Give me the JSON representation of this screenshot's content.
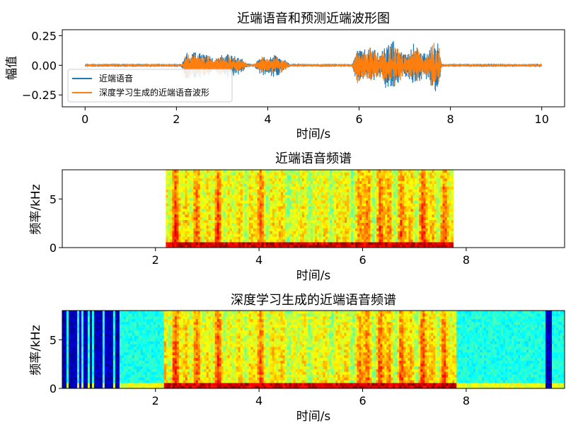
{
  "colors": {
    "series_near_end": "#1f77b4",
    "series_generated": "#ff7f0e",
    "spectrogram_colormap": "jet"
  },
  "chart_data": [
    {
      "id": "waveform",
      "type": "line",
      "title": "近端语音和预测近端波形图",
      "xlabel": "时间/s",
      "ylabel": "幅值",
      "xlim": [
        -0.5,
        10.5
      ],
      "ylim": [
        -0.35,
        0.3
      ],
      "xticks": [
        0,
        2,
        4,
        6,
        8,
        10
      ],
      "xtick_labels": [
        "0",
        "2",
        "4",
        "6",
        "8",
        "10"
      ],
      "yticks": [
        0.25,
        0.0,
        -0.25
      ],
      "ytick_labels": [
        "0.25",
        "0.00",
        "−0.25"
      ],
      "legend": "lower-left",
      "series": [
        {
          "name": "近端语音",
          "color": "#1f77b4",
          "envelope": [
            [
              0.0,
              0.005
            ],
            [
              2.05,
              0.005
            ],
            [
              2.15,
              0.04
            ],
            [
              2.2,
              0.14
            ],
            [
              2.35,
              0.13
            ],
            [
              2.5,
              0.12
            ],
            [
              2.65,
              0.14
            ],
            [
              2.8,
              0.06
            ],
            [
              2.95,
              0.1
            ],
            [
              3.1,
              0.12
            ],
            [
              3.25,
              0.1
            ],
            [
              3.4,
              0.08
            ],
            [
              3.55,
              0.02
            ],
            [
              3.7,
              0.005
            ],
            [
              3.75,
              0.04
            ],
            [
              3.85,
              0.1
            ],
            [
              4.0,
              0.08
            ],
            [
              4.15,
              0.12
            ],
            [
              4.35,
              0.06
            ],
            [
              4.5,
              0.01
            ],
            [
              4.6,
              0.005
            ],
            [
              5.0,
              0.012
            ],
            [
              5.2,
              0.005
            ],
            [
              5.85,
              0.01
            ],
            [
              5.95,
              0.2
            ],
            [
              6.1,
              0.15
            ],
            [
              6.25,
              0.18
            ],
            [
              6.45,
              0.12
            ],
            [
              6.6,
              0.22
            ],
            [
              6.75,
              0.26
            ],
            [
              6.9,
              0.15
            ],
            [
              7.05,
              0.12
            ],
            [
              7.2,
              0.2
            ],
            [
              7.35,
              0.15
            ],
            [
              7.5,
              0.12
            ],
            [
              7.65,
              0.28
            ],
            [
              7.75,
              0.2
            ],
            [
              7.8,
              0.02
            ],
            [
              8.0,
              0.005
            ],
            [
              10.0,
              0.005
            ]
          ]
        },
        {
          "name": "深度学习生成的近端语音波形",
          "color": "#ff7f0e",
          "envelope": [
            [
              0.0,
              0.004
            ],
            [
              2.05,
              0.004
            ],
            [
              2.15,
              0.03
            ],
            [
              2.2,
              0.12
            ],
            [
              2.35,
              0.11
            ],
            [
              2.5,
              0.1
            ],
            [
              2.65,
              0.12
            ],
            [
              2.8,
              0.05
            ],
            [
              2.95,
              0.09
            ],
            [
              3.1,
              0.1
            ],
            [
              3.25,
              0.08
            ],
            [
              3.4,
              0.06
            ],
            [
              3.55,
              0.015
            ],
            [
              3.7,
              0.004
            ],
            [
              3.75,
              0.03
            ],
            [
              3.85,
              0.08
            ],
            [
              4.0,
              0.07
            ],
            [
              4.15,
              0.1
            ],
            [
              4.35,
              0.05
            ],
            [
              4.5,
              0.008
            ],
            [
              4.6,
              0.004
            ],
            [
              5.0,
              0.01
            ],
            [
              5.2,
              0.004
            ],
            [
              5.85,
              0.008
            ],
            [
              5.95,
              0.17
            ],
            [
              6.1,
              0.13
            ],
            [
              6.25,
              0.15
            ],
            [
              6.45,
              0.1
            ],
            [
              6.6,
              0.18
            ],
            [
              6.75,
              0.21
            ],
            [
              6.9,
              0.13
            ],
            [
              7.05,
              0.1
            ],
            [
              7.2,
              0.17
            ],
            [
              7.35,
              0.13
            ],
            [
              7.5,
              0.1
            ],
            [
              7.65,
              0.24
            ],
            [
              7.75,
              0.17
            ],
            [
              7.8,
              0.015
            ],
            [
              8.0,
              0.004
            ],
            [
              10.0,
              0.004
            ]
          ]
        }
      ]
    },
    {
      "id": "near_end_spectrogram",
      "type": "heatmap",
      "title": "近端语音频谱",
      "xlabel": "时间/s",
      "ylabel": "频率/kHz",
      "xlim": [
        0.2,
        9.9
      ],
      "ylim": [
        0,
        8
      ],
      "data_extent_x": [
        2.2,
        7.75
      ],
      "xticks": [
        2,
        4,
        6,
        8
      ],
      "xtick_labels": [
        "2",
        "4",
        "6",
        "8"
      ],
      "yticks": [
        0,
        5
      ],
      "ytick_labels": [
        "0",
        "5"
      ],
      "colormap": "jet",
      "speech_energy": [
        [
          2.2,
          0.9
        ],
        [
          2.3,
          0.85
        ],
        [
          2.6,
          0.95
        ],
        [
          2.8,
          0.7
        ],
        [
          3.2,
          0.9
        ],
        [
          3.4,
          0.7
        ],
        [
          3.6,
          0.4
        ],
        [
          3.9,
          0.8
        ],
        [
          4.2,
          0.75
        ],
        [
          4.5,
          0.4
        ],
        [
          5.0,
          0.4
        ],
        [
          5.85,
          0.55
        ],
        [
          6.0,
          0.95
        ],
        [
          6.3,
          0.9
        ],
        [
          6.6,
          0.85
        ],
        [
          6.9,
          0.8
        ],
        [
          7.2,
          0.9
        ],
        [
          7.5,
          0.85
        ],
        [
          7.7,
          0.7
        ]
      ]
    },
    {
      "id": "generated_spectrogram",
      "type": "heatmap",
      "title": "深度学习生成的近端语音频谱",
      "xlabel": "时间/s",
      "ylabel": "频率/kHz",
      "xlim": [
        0.2,
        9.9
      ],
      "ylim": [
        0,
        8
      ],
      "data_extent_x": [
        0.2,
        9.9
      ],
      "xticks": [
        2,
        4,
        6,
        8
      ],
      "xtick_labels": [
        "2",
        "4",
        "6",
        "8"
      ],
      "yticks": [
        0,
        5
      ],
      "ytick_labels": [
        "0",
        "5"
      ],
      "colormap": "jet",
      "speech_energy": [
        [
          2.2,
          0.9
        ],
        [
          2.3,
          0.85
        ],
        [
          2.6,
          0.95
        ],
        [
          2.8,
          0.7
        ],
        [
          3.2,
          0.9
        ],
        [
          3.4,
          0.7
        ],
        [
          3.6,
          0.4
        ],
        [
          3.9,
          0.8
        ],
        [
          4.2,
          0.75
        ],
        [
          4.5,
          0.4
        ],
        [
          5.0,
          0.4
        ],
        [
          5.85,
          0.55
        ],
        [
          6.0,
          0.95
        ],
        [
          6.3,
          0.9
        ],
        [
          6.6,
          0.85
        ],
        [
          6.9,
          0.8
        ],
        [
          7.2,
          0.9
        ],
        [
          7.5,
          0.85
        ],
        [
          7.7,
          0.7
        ]
      ],
      "dark_bands": [
        0.25,
        0.35,
        0.45,
        0.55,
        0.65,
        0.75,
        0.85,
        0.95,
        1.05,
        1.15,
        1.25,
        9.55,
        9.6
      ]
    }
  ]
}
